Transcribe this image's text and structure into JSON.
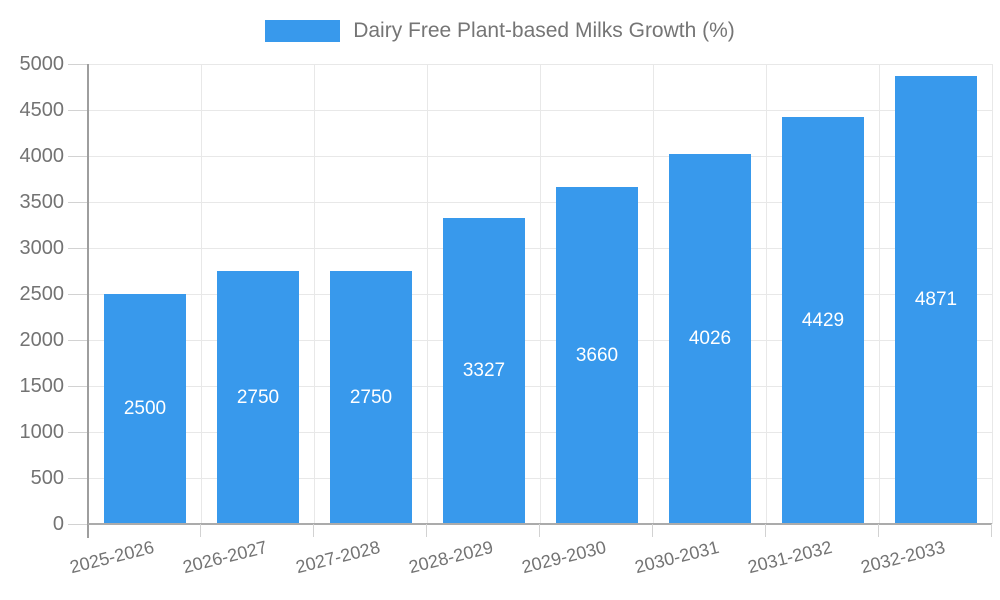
{
  "legend": {
    "label": "Dairy Free Plant-based Milks Growth (%)"
  },
  "colors": {
    "bar": "#3899ec",
    "bar_label_text": "#ffffff",
    "axis_text": "#737373",
    "legend_text": "#757575",
    "grid_line": "#e8e8e8",
    "axis_line": "#9e9e9e",
    "baseline": "#ababab",
    "tick": "#d2d2d2",
    "background": "#ffffff"
  },
  "chart_data": {
    "type": "bar",
    "title": "Dairy Free Plant-based Milks Growth (%)",
    "series_name": "Dairy Free Plant-based Milks Growth (%)",
    "categories": [
      "2025-2026",
      "2026-2027",
      "2027-2028",
      "2028-2029",
      "2029-2030",
      "2030-2031",
      "2031-2032",
      "2032-2033"
    ],
    "values": [
      2500,
      2750,
      2750,
      3327,
      3660,
      4026,
      4429,
      4871
    ],
    "xlabel": "",
    "ylabel": "",
    "ylim": [
      0,
      5000
    ],
    "yticks": [
      0,
      500,
      1000,
      1500,
      2000,
      2500,
      3000,
      3500,
      4000,
      4500,
      5000
    ],
    "grid": true,
    "grid_vertical": true,
    "legend_position": "top-center",
    "bar_labels": "inside-center",
    "x_label_rotation_deg": -14
  }
}
